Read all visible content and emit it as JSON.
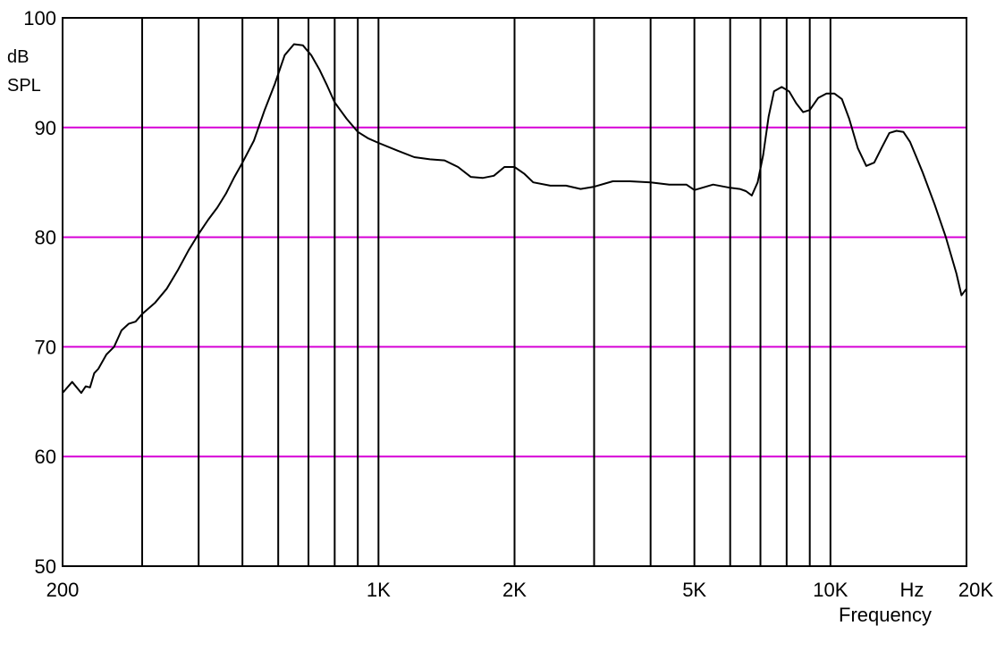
{
  "chart_data": {
    "type": "line",
    "xscale": "log",
    "xlim": [
      200,
      20000
    ],
    "ylim": [
      50,
      100
    ],
    "yunit_line1": "dB",
    "yunit_line2": "SPL",
    "xlabel": "Frequency",
    "xunit": "Hz",
    "grid": true,
    "legend": "none",
    "colors": {
      "curve": "#000000",
      "horizontal_grid": "#d600d6",
      "vertical_grid": "#000000",
      "frame": "#000000"
    },
    "y_ticks": [
      {
        "value": 100,
        "label": "100"
      },
      {
        "value": 90,
        "label": "90"
      },
      {
        "value": 80,
        "label": "80"
      },
      {
        "value": 70,
        "label": "70"
      },
      {
        "value": 60,
        "label": "60"
      },
      {
        "value": 50,
        "label": "50"
      }
    ],
    "x_ticks": [
      {
        "value": 200,
        "label": "200"
      },
      {
        "value": 1000,
        "label": "1K"
      },
      {
        "value": 2000,
        "label": "2K"
      },
      {
        "value": 5000,
        "label": "5K"
      },
      {
        "value": 10000,
        "label": "10K"
      },
      {
        "value": 20000,
        "label": "20K"
      }
    ],
    "horizontal_gridlines": [
      60,
      70,
      80,
      90
    ],
    "vertical_gridlines": [
      300,
      400,
      500,
      600,
      700,
      800,
      900,
      1000,
      2000,
      3000,
      4000,
      5000,
      6000,
      7000,
      8000,
      9000,
      10000
    ],
    "series": [
      {
        "x": [
          200,
          210,
          220,
          225,
          230,
          235,
          240,
          250,
          260,
          270,
          280,
          290,
          300,
          320,
          340,
          360,
          380,
          400,
          420,
          440,
          460,
          480,
          500,
          530,
          560,
          590,
          620,
          650,
          680,
          710,
          740,
          770,
          800,
          850,
          900,
          950,
          1000,
          1100,
          1200,
          1300,
          1400,
          1500,
          1600,
          1700,
          1800,
          1900,
          2000,
          2100,
          2200,
          2400,
          2600,
          2800,
          3000,
          3300,
          3600,
          4000,
          4400,
          4800,
          5000,
          5500,
          6000,
          6300,
          6500,
          6700,
          6900,
          7100,
          7300,
          7500,
          7800,
          8100,
          8400,
          8700,
          9000,
          9400,
          9800,
          10200,
          10600,
          11000,
          11500,
          12000,
          12500,
          13000,
          13500,
          14000,
          14500,
          15000,
          15500,
          16000,
          17000,
          18000,
          19000,
          19500,
          20000
        ],
        "y": [
          65.8,
          66.8,
          65.8,
          66.4,
          66.3,
          67.6,
          68.0,
          69.3,
          70.0,
          71.5,
          72.1,
          72.3,
          73.0,
          74.0,
          75.3,
          77.0,
          78.8,
          80.3,
          81.6,
          82.7,
          84.0,
          85.5,
          86.8,
          88.8,
          91.6,
          94.0,
          96.6,
          97.6,
          97.5,
          96.6,
          95.3,
          93.8,
          92.3,
          90.8,
          89.6,
          89.0,
          88.6,
          87.9,
          87.3,
          87.1,
          87.0,
          86.4,
          85.5,
          85.4,
          85.6,
          86.4,
          86.4,
          85.8,
          85.0,
          84.7,
          84.7,
          84.4,
          84.6,
          85.1,
          85.1,
          85.0,
          84.8,
          84.8,
          84.3,
          84.8,
          84.5,
          84.4,
          84.2,
          83.8,
          85.0,
          87.5,
          91.0,
          93.3,
          93.7,
          93.3,
          92.2,
          91.4,
          91.6,
          92.7,
          93.1,
          93.1,
          92.6,
          90.8,
          88.1,
          86.5,
          86.8,
          88.2,
          89.5,
          89.7,
          89.6,
          88.7,
          87.3,
          85.9,
          83.0,
          80.0,
          76.7,
          74.7,
          75.3
        ]
      }
    ]
  }
}
